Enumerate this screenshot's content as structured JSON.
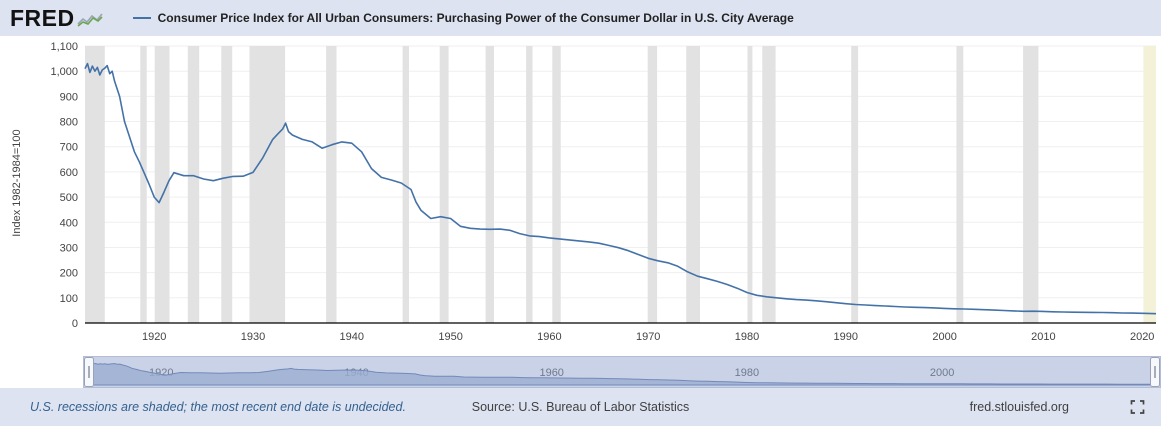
{
  "header": {
    "logo": "FRED",
    "legend_series_label": "Consumer Price Index for All Urban Consumers: Purchasing Power of the Consumer Dollar in U.S. City Average"
  },
  "chart_data": {
    "type": "line",
    "title": "Consumer Price Index for All Urban Consumers: Purchasing Power of the Consumer Dollar in U.S. City Average",
    "xlabel": "",
    "ylabel": "Index 1982-1984=100",
    "ylim": [
      0,
      1100
    ],
    "x_start": 1913,
    "x_end": 2021.4,
    "grid": "faint-horizontal",
    "legend_position": "top-header",
    "line_color": "#4472a8",
    "recession_color": "#e2e2e2",
    "undecided_recession_color": "#f3f1d8",
    "y_ticks": [
      0,
      100,
      200,
      300,
      400,
      500,
      600,
      700,
      800,
      900,
      1000,
      1100
    ],
    "y_tick_labels": [
      "0",
      "100",
      "200",
      "300",
      "400",
      "500",
      "600",
      "700",
      "800",
      "900",
      "1,000",
      "1,100"
    ],
    "x_ticks": [
      1920,
      1930,
      1940,
      1950,
      1960,
      1970,
      1980,
      1990,
      2000,
      2010,
      2020
    ],
    "recessions": [
      [
        1913.0,
        1915.0
      ],
      [
        1918.6,
        1919.25
      ],
      [
        1920.05,
        1921.55
      ],
      [
        1923.4,
        1924.55
      ],
      [
        1926.8,
        1927.9
      ],
      [
        1929.65,
        1933.25
      ],
      [
        1937.4,
        1938.45
      ],
      [
        1945.15,
        1945.8
      ],
      [
        1948.9,
        1949.8
      ],
      [
        1953.55,
        1954.4
      ],
      [
        1957.65,
        1958.3
      ],
      [
        1960.3,
        1961.15
      ],
      [
        1969.95,
        1970.9
      ],
      [
        1973.85,
        1975.25
      ],
      [
        1980.05,
        1980.55
      ],
      [
        1981.55,
        1982.9
      ],
      [
        1990.55,
        1991.25
      ],
      [
        2001.2,
        2001.9
      ],
      [
        2007.95,
        2009.5
      ]
    ],
    "undecided_recession": [
      2020.12,
      2021.4
    ],
    "series": [
      {
        "name": "Purchasing Power of the Consumer Dollar in U.S. City Average",
        "x": [
          1913,
          1913.25,
          1913.5,
          1913.75,
          1914,
          1914.25,
          1914.5,
          1914.75,
          1915,
          1915.25,
          1915.5,
          1915.75,
          1916,
          1916.5,
          1917,
          1917.5,
          1918,
          1918.5,
          1919,
          1919.5,
          1920,
          1920.5,
          1921,
          1921.5,
          1922,
          1923,
          1924,
          1925,
          1926,
          1927,
          1928,
          1929,
          1930,
          1931,
          1932,
          1932.5,
          1933,
          1933.3,
          1933.6,
          1934,
          1935,
          1936,
          1937,
          1938,
          1939,
          1940,
          1941,
          1942,
          1943,
          1944,
          1945,
          1946,
          1946.5,
          1947,
          1948,
          1949,
          1950,
          1951,
          1952,
          1953,
          1954,
          1955,
          1956,
          1957,
          1958,
          1959,
          1960,
          1961,
          1962,
          1963,
          1964,
          1965,
          1966,
          1967,
          1968,
          1969,
          1970,
          1971,
          1972,
          1973,
          1974,
          1975,
          1976,
          1977,
          1978,
          1979,
          1980,
          1981,
          1982,
          1983,
          1984,
          1985,
          1986,
          1987,
          1988,
          1989,
          1990,
          1991,
          1992,
          1993,
          1994,
          1995,
          1996,
          1997,
          1998,
          1999,
          2000,
          2001,
          2002,
          2003,
          2004,
          2005,
          2006,
          2007,
          2008,
          2009,
          2010,
          2011,
          2012,
          2013,
          2014,
          2015,
          2016,
          2017,
          2018,
          2019,
          2020,
          2021,
          2021.4
        ],
        "values": [
          1010,
          1030,
          995,
          1020,
          1000,
          1015,
          985,
          1005,
          1012,
          1022,
          990,
          1000,
          960,
          900,
          800,
          740,
          680,
          640,
          595,
          550,
          500,
          478,
          520,
          565,
          597,
          585,
          585,
          572,
          565,
          575,
          582,
          583,
          598,
          656,
          729,
          750,
          770,
          794,
          760,
          746,
          729,
          719,
          694,
          708,
          719,
          714,
          680,
          613,
          578,
          568,
          556,
          530,
          480,
          448,
          415,
          422,
          415,
          384,
          376,
          373,
          372,
          373,
          368,
          355,
          346,
          343,
          338,
          334,
          330,
          326,
          322,
          317,
          308,
          299,
          287,
          272,
          257,
          247,
          239,
          225,
          203,
          186,
          176,
          165,
          153,
          138,
          121,
          110,
          104,
          100,
          96,
          93,
          91,
          88,
          84.5,
          80.6,
          76.5,
          73.4,
          71.3,
          69.2,
          67.5,
          65.6,
          63.7,
          62.3,
          61.3,
          60,
          58.1,
          56.5,
          55.6,
          54.4,
          52.9,
          51.2,
          49.6,
          48.2,
          46.5,
          46.7,
          45.9,
          44.5,
          43.6,
          43,
          42.3,
          42.2,
          41.7,
          40.9,
          39.9,
          39.2,
          38.7,
          37.3,
          37
        ]
      }
    ]
  },
  "minimap": {
    "labels": [
      "1920",
      "1940",
      "1960",
      "1980",
      "2000"
    ]
  },
  "footer": {
    "note": "U.S. recessions are shaded; the most recent end date is undecided.",
    "source": "Source: U.S. Bureau of Labor Statistics",
    "site": "fred.stlouisfed.org"
  }
}
